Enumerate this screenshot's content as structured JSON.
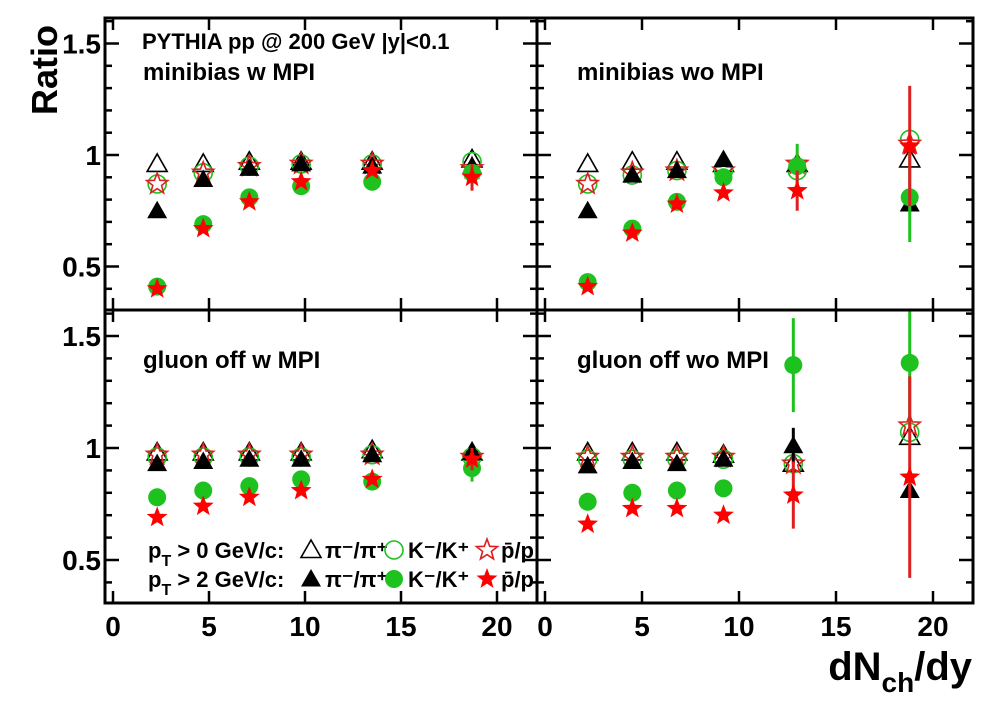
{
  "chart_data": {
    "type": "scatter",
    "ylabel": "Ratio",
    "xlabel": "dN_ch/dy",
    "xlabel_main": "dN",
    "xlabel_sub": "ch",
    "xlabel_tail": "/dy",
    "header": "PYTHIA pp @ 200 GeV |y|<0.1",
    "xlim": [
      -0.4,
      22.1
    ],
    "ylim": [
      0.3,
      1.61
    ],
    "x_ticks": [
      "0",
      "5",
      "10",
      "15",
      "20"
    ],
    "y_ticks": [
      "0.5",
      "1",
      "1.5"
    ],
    "grid": false,
    "colors": {
      "pi": "#000000",
      "K": "#1ec21e",
      "p": "#ff0000",
      "p_err": "#dd1f1f"
    },
    "legend": {
      "placement": "bottom-left of lower-left panel",
      "row1": {
        "cut": "p",
        "cut_sub": "T",
        "cut_tail": " > 0 GeV/c:",
        "pi": "π⁻/π⁺",
        "K": "K⁻/K⁺",
        "p": "p̄/p",
        "markers": "open"
      },
      "row2": {
        "cut": "p",
        "cut_sub": "T",
        "cut_tail": " > 2 GeV/c:",
        "pi": "π⁻/π⁺",
        "K": "K⁻/K⁺",
        "p": "p̄/p",
        "markers": "filled"
      }
    },
    "panels": [
      {
        "label": "minibias w MPI",
        "x": [
          2.3,
          4.7,
          7.1,
          9.8,
          13.5,
          18.7
        ],
        "series": [
          {
            "name": "pT>0 π⁻/π⁺",
            "marker": "open-triangle",
            "values": [
              0.96,
              0.96,
              0.97,
              0.97,
              0.97,
              0.98
            ]
          },
          {
            "name": "pT>0 K⁻/K⁺",
            "marker": "open-circle",
            "values": [
              0.87,
              0.92,
              0.95,
              0.96,
              0.96,
              0.97
            ]
          },
          {
            "name": "pT>0 p̄/p",
            "marker": "open-star",
            "values": [
              0.87,
              0.92,
              0.95,
              0.96,
              0.96,
              0.94
            ]
          },
          {
            "name": "pT>2 π⁻/π⁺",
            "marker": "filled-triangle",
            "values": [
              0.75,
              0.89,
              0.94,
              0.96,
              0.95,
              0.95
            ]
          },
          {
            "name": "pT>2 K⁻/K⁺",
            "marker": "filled-circle",
            "values": [
              0.41,
              0.69,
              0.81,
              0.86,
              0.88,
              0.92
            ]
          },
          {
            "name": "pT>2 p̄/p",
            "marker": "filled-star",
            "values": [
              0.4,
              0.67,
              0.79,
              0.88,
              0.93,
              0.9
            ],
            "errors": [
              0,
              0,
              0,
              0,
              0,
              0.06
            ]
          }
        ]
      },
      {
        "label": "minibias wo MPI",
        "x": [
          2.2,
          4.5,
          6.8,
          9.2,
          13.0,
          18.8
        ],
        "series": [
          {
            "name": "pT>0 π⁻/π⁺",
            "marker": "open-triangle",
            "values": [
              0.96,
              0.97,
              0.97,
              0.96,
              0.96,
              0.98
            ]
          },
          {
            "name": "pT>0 K⁻/K⁺",
            "marker": "open-circle",
            "values": [
              0.87,
              0.91,
              0.93,
              0.93,
              0.93,
              1.07
            ]
          },
          {
            "name": "pT>0 p̄/p",
            "marker": "open-star",
            "values": [
              0.87,
              0.92,
              0.93,
              0.93,
              0.96,
              1.05
            ]
          },
          {
            "name": "pT>2 π⁻/π⁺",
            "marker": "filled-triangle",
            "values": [
              0.75,
              0.91,
              0.93,
              0.98,
              0.96,
              0.78
            ]
          },
          {
            "name": "pT>2 K⁻/K⁺",
            "marker": "filled-circle",
            "values": [
              0.43,
              0.67,
              0.79,
              0.9,
              0.95,
              0.81
            ],
            "errors": [
              0,
              0,
              0,
              0,
              0.1,
              0.2
            ]
          },
          {
            "name": "pT>2 p̄/p",
            "marker": "filled-star",
            "values": [
              0.41,
              0.65,
              0.78,
              0.83,
              0.84,
              1.04
            ],
            "errors": [
              0,
              0,
              0,
              0,
              0.09,
              0.27
            ]
          }
        ]
      },
      {
        "label": "gluon off w MPI",
        "x": [
          2.3,
          4.7,
          7.1,
          9.8,
          13.5,
          18.7
        ],
        "series": [
          {
            "name": "pT>0 π⁻/π⁺",
            "marker": "open-triangle",
            "values": [
              0.98,
              0.98,
              0.98,
              0.98,
              0.99,
              0.98
            ]
          },
          {
            "name": "pT>0 K⁻/K⁺",
            "marker": "open-circle",
            "values": [
              0.96,
              0.96,
              0.96,
              0.96,
              0.97,
              0.96
            ]
          },
          {
            "name": "pT>0 p̄/p",
            "marker": "open-star",
            "values": [
              0.97,
              0.97,
              0.97,
              0.97,
              0.97,
              0.96
            ]
          },
          {
            "name": "pT>2 π⁻/π⁺",
            "marker": "filled-triangle",
            "values": [
              0.93,
              0.94,
              0.95,
              0.95,
              0.97,
              0.98
            ]
          },
          {
            "name": "pT>2 K⁻/K⁺",
            "marker": "filled-circle",
            "values": [
              0.78,
              0.81,
              0.83,
              0.86,
              0.85,
              0.91
            ],
            "errors": [
              0,
              0,
              0,
              0,
              0,
              0.06
            ]
          },
          {
            "name": "pT>2 p̄/p",
            "marker": "filled-star",
            "values": [
              0.69,
              0.74,
              0.78,
              0.81,
              0.86,
              0.95
            ],
            "errors": [
              0,
              0,
              0,
              0,
              0,
              0.05
            ]
          }
        ]
      },
      {
        "label": "gluon off wo MPI",
        "x": [
          2.2,
          4.5,
          6.8,
          9.2,
          12.8,
          18.8
        ],
        "series": [
          {
            "name": "pT>0 π⁻/π⁺",
            "marker": "open-triangle",
            "values": [
              0.98,
              0.98,
              0.98,
              0.97,
              0.93,
              1.05
            ]
          },
          {
            "name": "pT>0 K⁻/K⁺",
            "marker": "open-circle",
            "values": [
              0.95,
              0.95,
              0.95,
              0.95,
              0.93,
              1.07
            ]
          },
          {
            "name": "pT>0 p̄/p",
            "marker": "open-star",
            "values": [
              0.96,
              0.96,
              0.96,
              0.96,
              0.93,
              1.1
            ]
          },
          {
            "name": "pT>2 π⁻/π⁺",
            "marker": "filled-triangle",
            "values": [
              0.92,
              0.94,
              0.93,
              0.95,
              1.01,
              0.81
            ],
            "errors": [
              0,
              0,
              0,
              0,
              0.08,
              0
            ]
          },
          {
            "name": "pT>2 K⁻/K⁺",
            "marker": "filled-circle",
            "values": [
              0.76,
              0.8,
              0.81,
              0.82,
              1.37,
              1.38
            ],
            "errors": [
              0,
              0,
              0,
              0,
              0.21,
              0.3
            ]
          },
          {
            "name": "pT>2 p̄/p",
            "marker": "filled-star",
            "values": [
              0.66,
              0.73,
              0.73,
              0.7,
              0.79,
              0.87
            ],
            "errors": [
              0,
              0,
              0,
              0,
              0.15,
              0.45
            ]
          }
        ]
      }
    ]
  }
}
